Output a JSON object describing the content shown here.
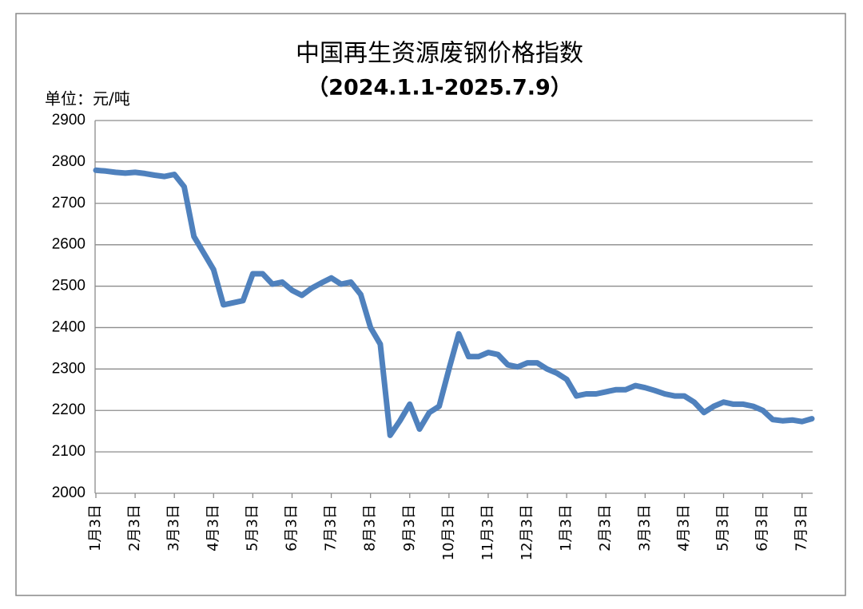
{
  "chart_data": {
    "type": "line",
    "title": "中国再生资源废钢价格指数",
    "subtitle": "（2024.1.1-2025.7.9）",
    "y_axis_label": "单位：元/吨",
    "color": "#4f81bd",
    "grid": true,
    "ylim": [
      2000,
      2900
    ],
    "yticks": [
      2000,
      2100,
      2200,
      2300,
      2400,
      2500,
      2600,
      2700,
      2800,
      2900
    ],
    "categories": [
      "1月3日",
      null,
      null,
      null,
      "2月3日",
      null,
      null,
      null,
      "3月3日",
      null,
      null,
      null,
      "4月3日",
      null,
      null,
      null,
      "5月3日",
      null,
      null,
      null,
      "6月3日",
      null,
      null,
      null,
      "7月3日",
      null,
      null,
      null,
      "8月3日",
      null,
      null,
      null,
      "9月3日",
      null,
      null,
      null,
      "10月3日",
      null,
      null,
      null,
      "11月3日",
      null,
      null,
      null,
      "12月3日",
      null,
      null,
      null,
      "1月3日",
      null,
      null,
      null,
      "2月3日",
      null,
      null,
      null,
      "3月3日",
      null,
      null,
      null,
      "4月3日",
      null,
      null,
      null,
      "5月3日",
      null,
      null,
      null,
      "6月3日",
      null,
      null,
      null,
      "7月3日",
      null
    ],
    "values": [
      2780,
      2778,
      2775,
      2773,
      2775,
      2772,
      2768,
      2765,
      2770,
      2740,
      2620,
      2580,
      2540,
      2455,
      2460,
      2465,
      2530,
      2530,
      2505,
      2510,
      2490,
      2478,
      2495,
      2508,
      2520,
      2505,
      2510,
      2480,
      2400,
      2360,
      2140,
      2175,
      2215,
      2155,
      2195,
      2210,
      2300,
      2385,
      2330,
      2330,
      2340,
      2335,
      2310,
      2305,
      2315,
      2315,
      2300,
      2290,
      2275,
      2235,
      2240,
      2240,
      2245,
      2250,
      2250,
      2260,
      2255,
      2248,
      2240,
      2235,
      2235,
      2220,
      2195,
      2210,
      2220,
      2215,
      2215,
      2210,
      2200,
      2178,
      2175,
      2177,
      2173,
      2180
    ]
  }
}
